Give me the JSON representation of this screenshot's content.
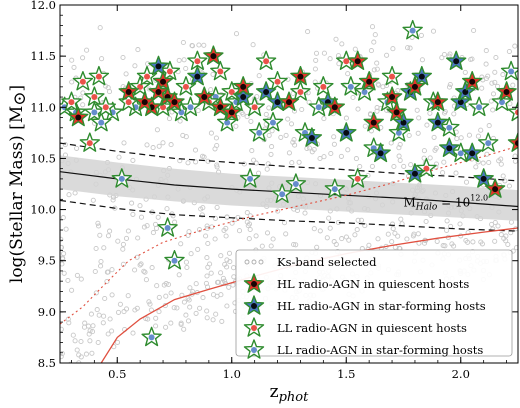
{
  "chart_data": {
    "type": "scatter",
    "xlabel_main": "z",
    "xlabel_sub": "phot",
    "ylabel": "log(Stellar Mass) [M",
    "ylabel_sym": "⊙",
    "ylabel_close": "]",
    "xlim": [
      0.25,
      2.25
    ],
    "ylim": [
      8.5,
      12.0
    ],
    "x_ticks": [
      0.5,
      1.0,
      1.5,
      2.0
    ],
    "x_tick_labels": [
      "0.5",
      "1.0",
      "1.5",
      "2.0"
    ],
    "y_ticks": [
      8.5,
      9.0,
      9.5,
      10.0,
      10.5,
      11.0,
      11.5,
      12.0
    ],
    "y_tick_labels": [
      "8.5",
      "9.0",
      "9.5",
      "10.0",
      "10.5",
      "11.0",
      "11.5",
      "12.0"
    ],
    "grid": false,
    "annotation": {
      "main": "M",
      "sub": "Halo",
      "eq": " = 10",
      "sup": "12.0",
      "x": 1.75,
      "y": 10.03
    },
    "colors": {
      "star_edge": "#2e8b2e",
      "ql_red": "#e8332a",
      "sf_blue": "#4a78c4",
      "ll_fill": "#ffffff",
      "halo_band": "#d4d4d4",
      "ks_dot": "#c8c8c8",
      "limit_line": "#e05040"
    },
    "halo_relation": {
      "x": [
        0.25,
        0.5,
        0.75,
        1.0,
        1.25,
        1.5,
        1.75,
        2.0,
        2.25
      ],
      "center": [
        10.37,
        10.3,
        10.24,
        10.2,
        10.17,
        10.14,
        10.11,
        10.07,
        10.03
      ],
      "band_low": [
        10.2,
        10.13,
        10.08,
        10.04,
        10.01,
        9.98,
        9.95,
        9.92,
        9.89
      ],
      "band_high": [
        10.53,
        10.46,
        10.4,
        10.35,
        10.32,
        10.29,
        10.26,
        10.23,
        10.19
      ],
      "dash_low": [
        10.09,
        10.01,
        9.95,
        9.92,
        9.89,
        9.87,
        9.84,
        9.81,
        9.79
      ],
      "dash_high": [
        10.65,
        10.57,
        10.5,
        10.46,
        10.42,
        10.39,
        10.35,
        10.32,
        10.28
      ]
    },
    "mass_limit_solid": {
      "x": [
        0.43,
        0.5,
        0.6,
        0.75,
        0.9,
        1.1,
        1.3,
        1.5,
        1.7,
        1.9,
        2.1,
        2.25
      ],
      "y": [
        8.5,
        8.75,
        8.93,
        9.12,
        9.22,
        9.35,
        9.47,
        9.57,
        9.65,
        9.72,
        9.78,
        9.82
      ]
    },
    "mass_limit_dotted": {
      "x": [
        0.25,
        0.35,
        0.45,
        0.55,
        0.7,
        0.9,
        1.1,
        1.3,
        1.5,
        1.7,
        1.9,
        2.1,
        2.25
      ],
      "y": [
        8.88,
        9.05,
        9.28,
        9.5,
        9.68,
        9.82,
        9.94,
        10.04,
        10.14,
        10.26,
        10.4,
        10.52,
        10.62
      ]
    },
    "legend": {
      "position": "lower-right",
      "entries": [
        {
          "marker": "dot",
          "label": "Ks-band selected"
        },
        {
          "marker": "star-red",
          "label": "HL radio-AGN in quiescent hosts"
        },
        {
          "marker": "star-blue",
          "label": "HL radio-AGN in star-forming hosts"
        },
        {
          "marker": "star-red-open",
          "label": "LL radio-AGN in quiescent hosts"
        },
        {
          "marker": "star-blue-open",
          "label": "LL radio-AGN in star-forming hosts"
        }
      ]
    },
    "series": [
      {
        "name": "HL radio-AGN in quiescent hosts",
        "points": [
          [
            0.33,
            10.9
          ],
          [
            0.65,
            11.0
          ],
          [
            0.7,
            11.25
          ],
          [
            0.72,
            11.1
          ],
          [
            0.75,
            11.05
          ],
          [
            0.68,
            11.15
          ],
          [
            0.88,
            11.1
          ],
          [
            0.92,
            11.5
          ],
          [
            0.95,
            11.0
          ],
          [
            1.0,
            10.95
          ],
          [
            1.05,
            11.2
          ],
          [
            1.25,
            11.05
          ],
          [
            1.3,
            11.3
          ],
          [
            1.55,
            11.45
          ],
          [
            1.6,
            11.25
          ],
          [
            1.62,
            10.85
          ],
          [
            1.7,
            11.1
          ],
          [
            1.72,
            10.95
          ],
          [
            1.8,
            11.2
          ],
          [
            1.9,
            11.05
          ],
          [
            2.05,
            11.25
          ],
          [
            2.2,
            11.15
          ],
          [
            2.15,
            10.2
          ],
          [
            2.25,
            10.65
          ],
          [
            1.45,
            11.0
          ],
          [
            0.55,
            11.15
          ],
          [
            0.62,
            11.05
          ]
        ]
      },
      {
        "name": "HL radio-AGN in star-forming hosts",
        "points": [
          [
            0.68,
            11.4
          ],
          [
            0.85,
            11.3
          ],
          [
            1.15,
            11.15
          ],
          [
            1.2,
            11.05
          ],
          [
            1.35,
            10.7
          ],
          [
            1.42,
            11.05
          ],
          [
            1.5,
            10.75
          ],
          [
            1.75,
            10.85
          ],
          [
            1.78,
            11.15
          ],
          [
            1.83,
            11.3
          ],
          [
            1.9,
            10.85
          ],
          [
            1.95,
            10.6
          ],
          [
            2.0,
            11.05
          ],
          [
            2.02,
            11.15
          ],
          [
            2.05,
            10.55
          ],
          [
            1.8,
            10.35
          ],
          [
            2.1,
            10.3
          ],
          [
            1.98,
            11.45
          ],
          [
            1.65,
            10.55
          ],
          [
            1.05,
            11.1
          ]
        ]
      },
      {
        "name": "LL radio-AGN in quiescent hosts",
        "points": [
          [
            0.3,
            11.05
          ],
          [
            0.35,
            11.25
          ],
          [
            0.4,
            11.1
          ],
          [
            0.42,
            11.3
          ],
          [
            0.45,
            11.0
          ],
          [
            0.55,
            11.05
          ],
          [
            0.6,
            11.2
          ],
          [
            0.63,
            11.3
          ],
          [
            0.7,
            11.0
          ],
          [
            0.73,
            11.35
          ],
          [
            0.8,
            11.2
          ],
          [
            0.9,
            11.05
          ],
          [
            0.95,
            11.35
          ],
          [
            1.0,
            11.15
          ],
          [
            1.1,
            11.0
          ],
          [
            1.15,
            11.45
          ],
          [
            1.2,
            11.25
          ],
          [
            1.3,
            11.15
          ],
          [
            1.4,
            11.2
          ],
          [
            1.5,
            11.45
          ],
          [
            1.55,
            10.3
          ],
          [
            1.7,
            11.3
          ],
          [
            1.85,
            10.4
          ],
          [
            2.25,
            10.95
          ],
          [
            0.38,
            10.65
          ],
          [
            0.85,
            11.45
          ]
        ]
      },
      {
        "name": "LL radio-AGN in star-forming hosts",
        "points": [
          [
            0.27,
            11.0
          ],
          [
            0.32,
            10.95
          ],
          [
            0.48,
            10.95
          ],
          [
            0.52,
            10.3
          ],
          [
            0.58,
            11.0
          ],
          [
            0.72,
            9.82
          ],
          [
            0.75,
            9.5
          ],
          [
            0.78,
            10.95
          ],
          [
            0.82,
            11.0
          ],
          [
            0.93,
            11.1
          ],
          [
            0.98,
            10.85
          ],
          [
            1.02,
            11.05
          ],
          [
            1.08,
            10.3
          ],
          [
            1.12,
            10.75
          ],
          [
            1.18,
            10.85
          ],
          [
            1.22,
            10.15
          ],
          [
            1.28,
            10.25
          ],
          [
            1.32,
            10.75
          ],
          [
            1.38,
            11.0
          ],
          [
            1.45,
            10.2
          ],
          [
            1.52,
            11.2
          ],
          [
            1.58,
            11.15
          ],
          [
            1.62,
            10.6
          ],
          [
            1.68,
            11.05
          ],
          [
            1.73,
            10.75
          ],
          [
            1.79,
            11.75
          ],
          [
            1.88,
            11.05
          ],
          [
            1.95,
            10.8
          ],
          [
            2.0,
            10.55
          ],
          [
            2.08,
            11.0
          ],
          [
            2.12,
            10.65
          ],
          [
            2.18,
            11.05
          ],
          [
            2.22,
            11.35
          ],
          [
            0.4,
            10.95
          ],
          [
            0.65,
            8.75
          ],
          [
            0.43,
            10.85
          ]
        ]
      }
    ]
  }
}
